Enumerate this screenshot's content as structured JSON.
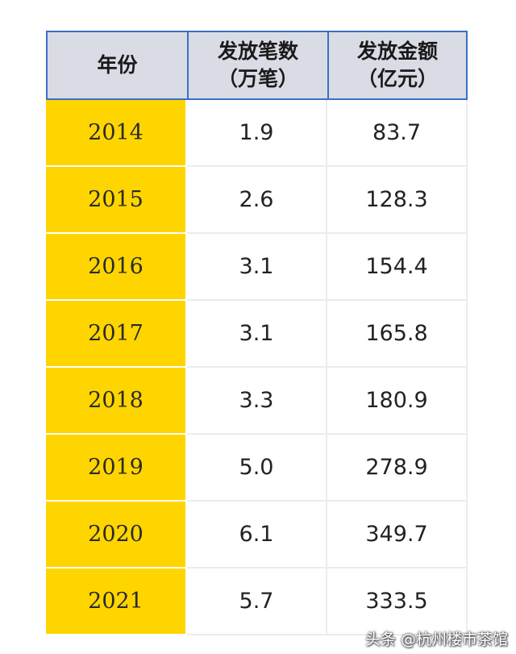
{
  "chart_data": {
    "type": "table",
    "columns": [
      "年份",
      "发放笔数\n（万笔）",
      "发放金额\n（亿元）"
    ],
    "header": {
      "year": "年份",
      "count_line1": "发放笔数",
      "count_line2": "（万笔）",
      "amount_line1": "发放金额",
      "amount_line2": "（亿元）"
    },
    "rows": [
      {
        "year": "2014",
        "count": "1.9",
        "amount": "83.7"
      },
      {
        "year": "2015",
        "count": "2.6",
        "amount": "128.3"
      },
      {
        "year": "2016",
        "count": "3.1",
        "amount": "154.4"
      },
      {
        "year": "2017",
        "count": "3.1",
        "amount": "165.8"
      },
      {
        "year": "2018",
        "count": "3.3",
        "amount": "180.9"
      },
      {
        "year": "2019",
        "count": "5.0",
        "amount": "278.9"
      },
      {
        "year": "2020",
        "count": "6.1",
        "amount": "349.7"
      },
      {
        "year": "2021",
        "count": "5.7",
        "amount": "333.5"
      }
    ]
  },
  "colors": {
    "year_cell": "#ffd500",
    "header_bg": "#d9dce5",
    "header_border": "#3a6fc4"
  },
  "watermark": "头条 @杭州楼市茶馆"
}
